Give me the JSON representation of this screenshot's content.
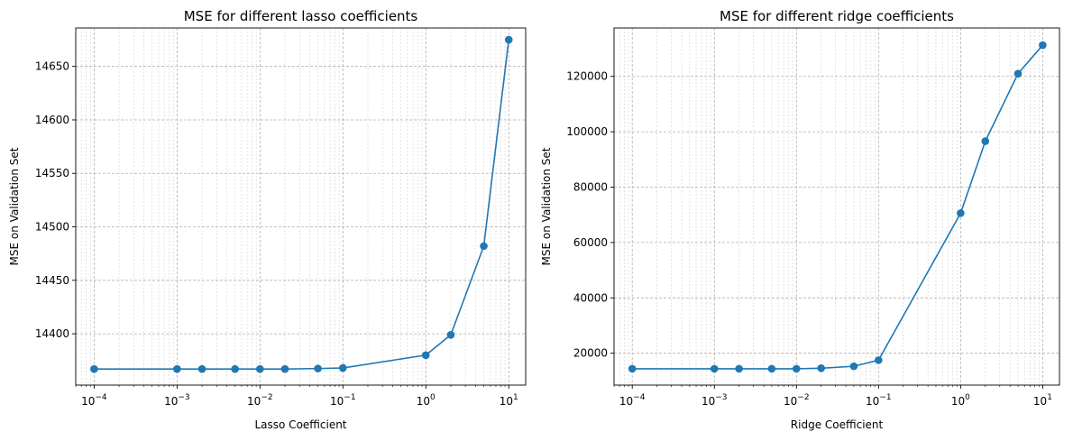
{
  "chart_data": [
    {
      "type": "line",
      "title": "MSE for different lasso coefficients",
      "xlabel": "Lasso Coefficient",
      "ylabel": "MSE on Validation Set",
      "xscale": "log",
      "xlim": [
        6e-05,
        16
      ],
      "ylim": [
        14352,
        14686
      ],
      "x_ticks": [
        {
          "value": 0.0001,
          "base": "10",
          "exp": "−4"
        },
        {
          "value": 0.001,
          "base": "10",
          "exp": "−3"
        },
        {
          "value": 0.01,
          "base": "10",
          "exp": "−2"
        },
        {
          "value": 0.1,
          "base": "10",
          "exp": "−1"
        },
        {
          "value": 1,
          "base": "10",
          "exp": "0"
        },
        {
          "value": 10,
          "base": "10",
          "exp": "1"
        }
      ],
      "y_ticks": [
        14400,
        14450,
        14500,
        14550,
        14600,
        14650
      ],
      "y_tick_labels": [
        "14400",
        "14450",
        "14500",
        "14550",
        "14600",
        "14650"
      ],
      "grid": true,
      "color": "#1f77b4",
      "series": [
        {
          "x": [
            0.0001,
            0.001,
            0.002,
            0.005,
            0.01,
            0.02,
            0.05,
            0.1,
            1,
            2,
            5,
            10
          ],
          "y": [
            14367,
            14367,
            14367,
            14367,
            14367,
            14367,
            14367.5,
            14368,
            14380,
            14399,
            14482,
            14675
          ]
        }
      ]
    },
    {
      "type": "line",
      "title": "MSE for different ridge coefficients",
      "xlabel": "Ridge Coefficient",
      "ylabel": "MSE on Validation Set",
      "xscale": "log",
      "xlim": [
        6e-05,
        16
      ],
      "ylim": [
        8500,
        137500
      ],
      "x_ticks": [
        {
          "value": 0.0001,
          "base": "10",
          "exp": "−4"
        },
        {
          "value": 0.001,
          "base": "10",
          "exp": "−3"
        },
        {
          "value": 0.01,
          "base": "10",
          "exp": "−2"
        },
        {
          "value": 0.1,
          "base": "10",
          "exp": "−1"
        },
        {
          "value": 1,
          "base": "10",
          "exp": "0"
        },
        {
          "value": 10,
          "base": "10",
          "exp": "1"
        }
      ],
      "y_ticks": [
        20000,
        40000,
        60000,
        80000,
        100000,
        120000
      ],
      "y_tick_labels": [
        "20000",
        "40000",
        "60000",
        "80000",
        "100000",
        "120000"
      ],
      "grid": true,
      "color": "#1f77b4",
      "series": [
        {
          "x": [
            0.0001,
            0.001,
            0.002,
            0.005,
            0.01,
            0.02,
            0.05,
            0.1,
            1,
            2,
            5,
            10
          ],
          "y": [
            14400,
            14400,
            14400,
            14400,
            14400,
            14600,
            15300,
            17500,
            70600,
            96600,
            121000,
            131300
          ]
        }
      ]
    }
  ]
}
